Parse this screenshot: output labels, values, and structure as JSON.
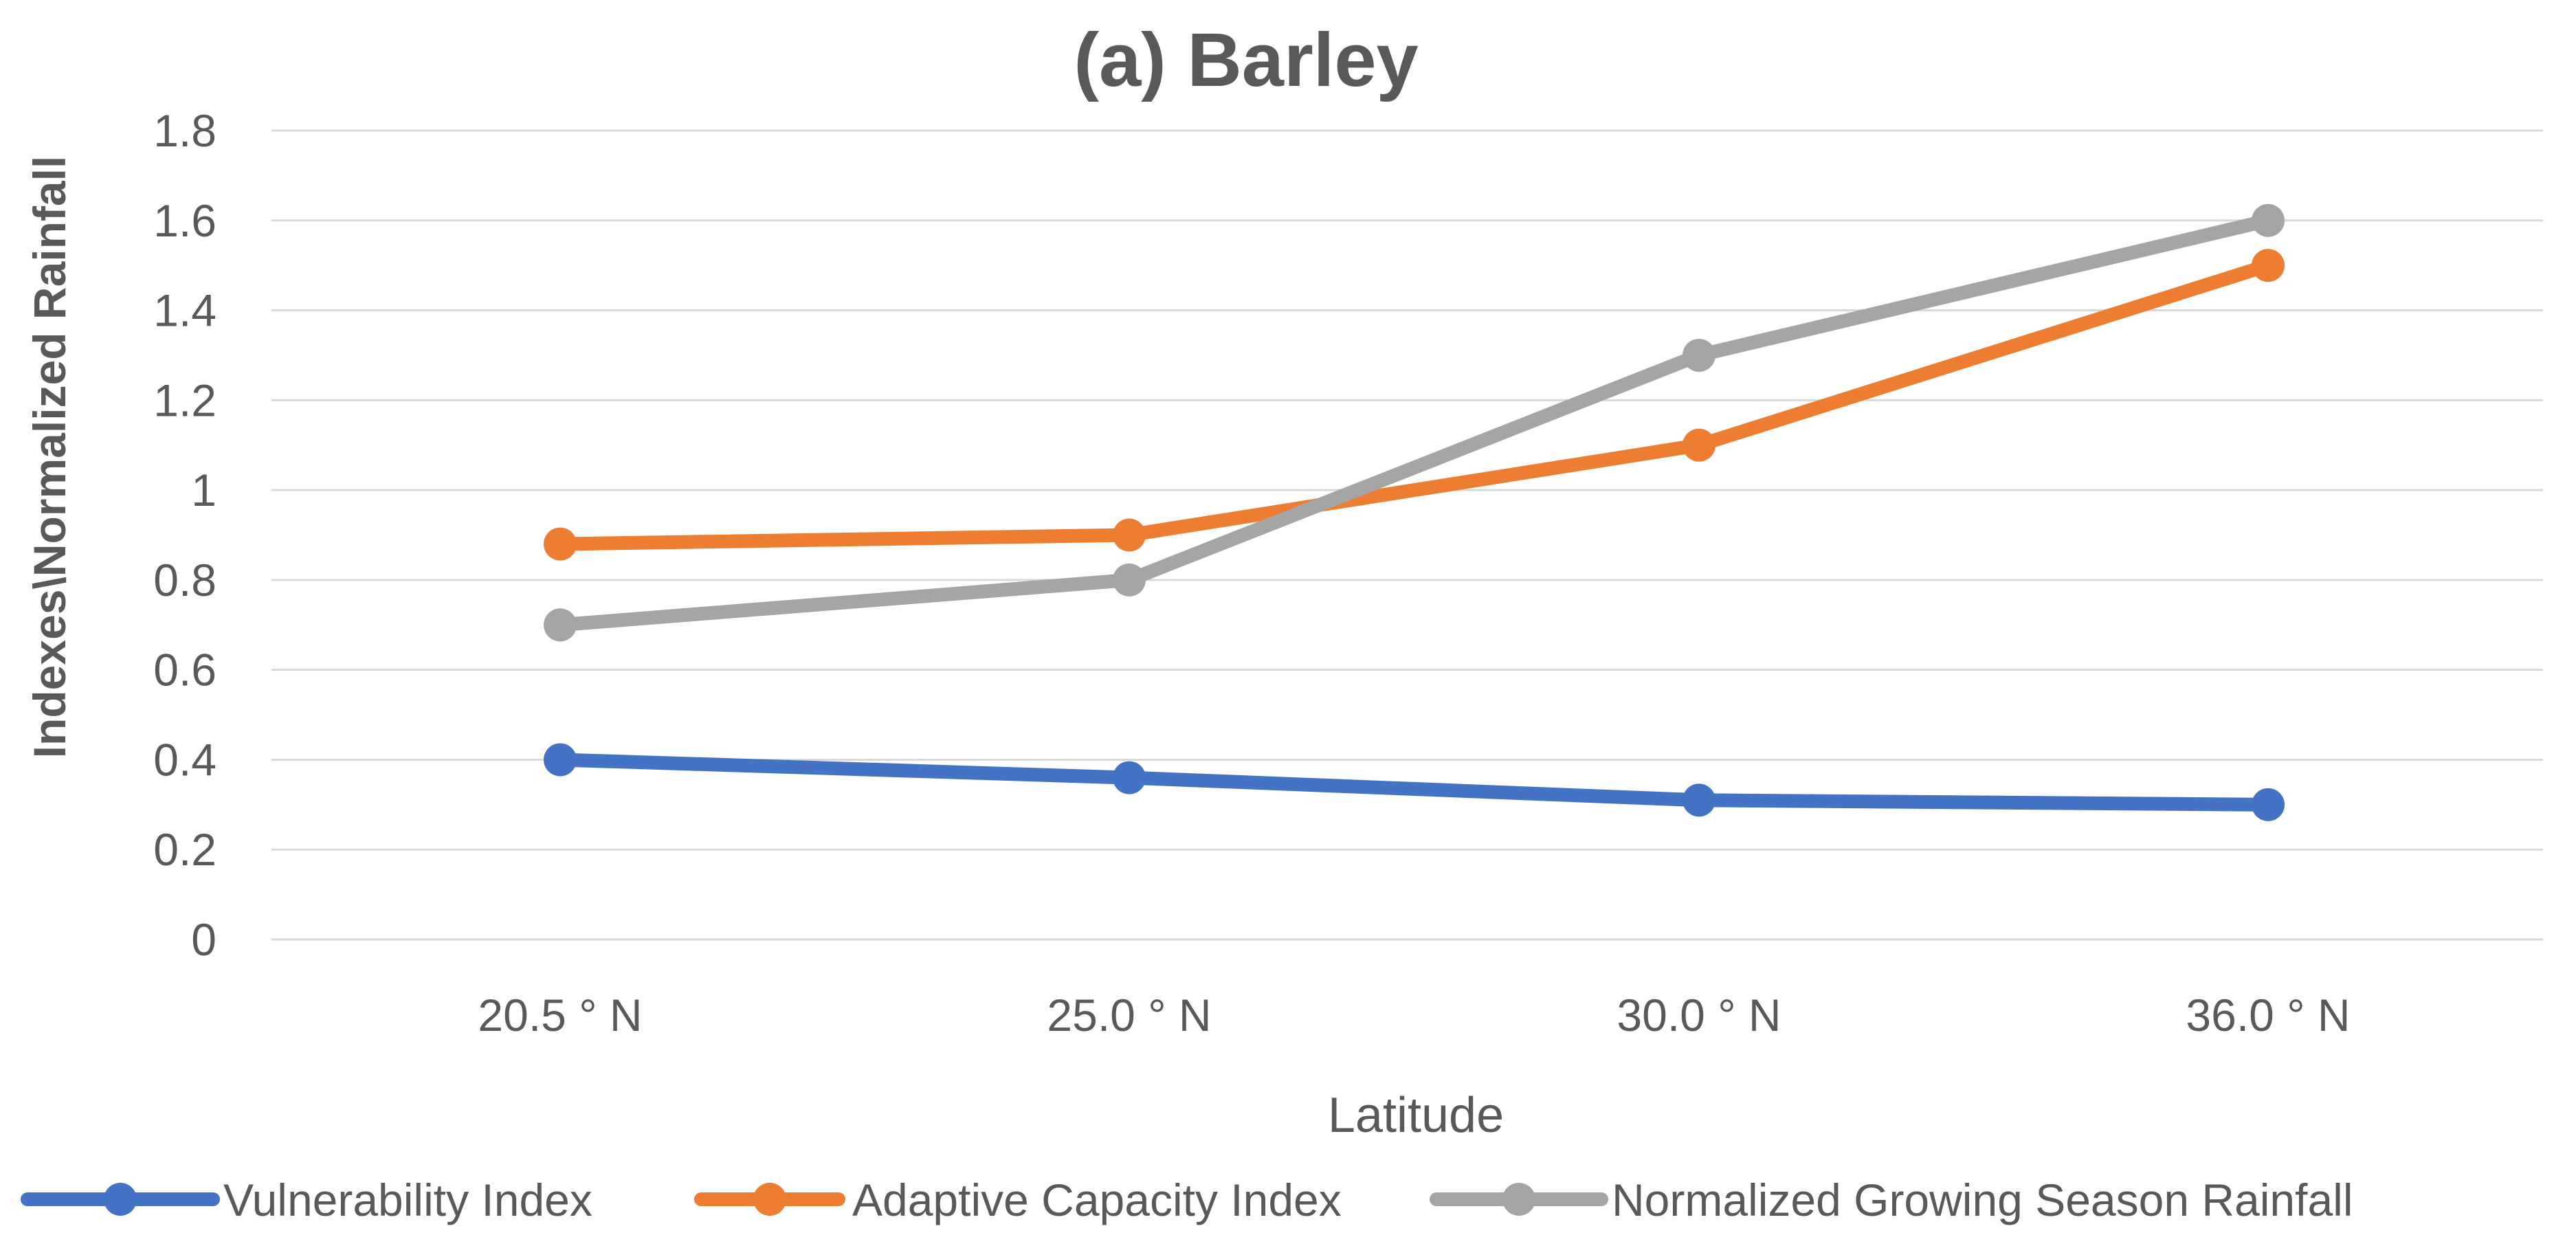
{
  "chart_data": {
    "type": "line",
    "title": "(a) Barley",
    "xlabel": "Latitude",
    "ylabel": "Indexes\\Normalized Rainfall",
    "categories": [
      "20.5 ° N",
      "25.0 ° N",
      "30.0 ° N",
      "36.0 ° N"
    ],
    "ylim": [
      0,
      1.8
    ],
    "yticks": [
      "0",
      "0.2",
      "0.4",
      "0.6",
      "0.8",
      "1",
      "1.2",
      "1.4",
      "1.6",
      "1.8"
    ],
    "grid": true,
    "legend_position": "bottom",
    "series": [
      {
        "name": "Vulnerability Index",
        "values": [
          0.4,
          0.36,
          0.31,
          0.3
        ],
        "color": "#4472C4"
      },
      {
        "name": "Adaptive Capacity Index",
        "values": [
          0.88,
          0.9,
          1.1,
          1.5
        ],
        "color": "#ED7D31"
      },
      {
        "name": "Normalized Growing Season Rainfall",
        "values": [
          0.7,
          0.8,
          1.3,
          1.6
        ],
        "color": "#A5A5A5"
      }
    ]
  }
}
